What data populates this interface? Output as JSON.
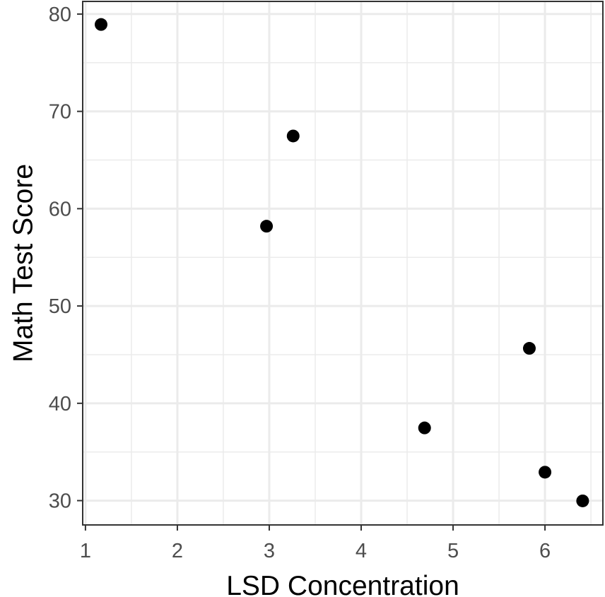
{
  "chart_data": {
    "type": "scatter",
    "title": "",
    "xlabel": "LSD Concentration",
    "ylabel": "Math Test Score",
    "xlim": [
      0.97,
      6.63
    ],
    "ylim": [
      27.5,
      81.3
    ],
    "x_ticks": [
      1,
      2,
      3,
      4,
      5,
      6
    ],
    "y_ticks": [
      30,
      40,
      50,
      60,
      70,
      80
    ],
    "x_minor_ticks": [
      1.5,
      2.5,
      3.5,
      4.5,
      5.5,
      6.5
    ],
    "y_minor_ticks": [
      35,
      45,
      55,
      65,
      75
    ],
    "grid": true,
    "legend": "none",
    "series": [
      {
        "points": [
          {
            "x": 1.17,
            "y": 78.93
          },
          {
            "x": 2.97,
            "y": 58.2
          },
          {
            "x": 3.26,
            "y": 67.47
          },
          {
            "x": 4.69,
            "y": 37.47
          },
          {
            "x": 5.83,
            "y": 45.65
          },
          {
            "x": 6.0,
            "y": 32.92
          },
          {
            "x": 6.41,
            "y": 29.97
          }
        ]
      }
    ],
    "colors": {
      "point": "#000000",
      "grid": "#ebebeb",
      "panel_border": "#333333",
      "tick_label": "#4d4d4d",
      "tick_mark": "#333333",
      "axis_title": "#000000"
    }
  }
}
